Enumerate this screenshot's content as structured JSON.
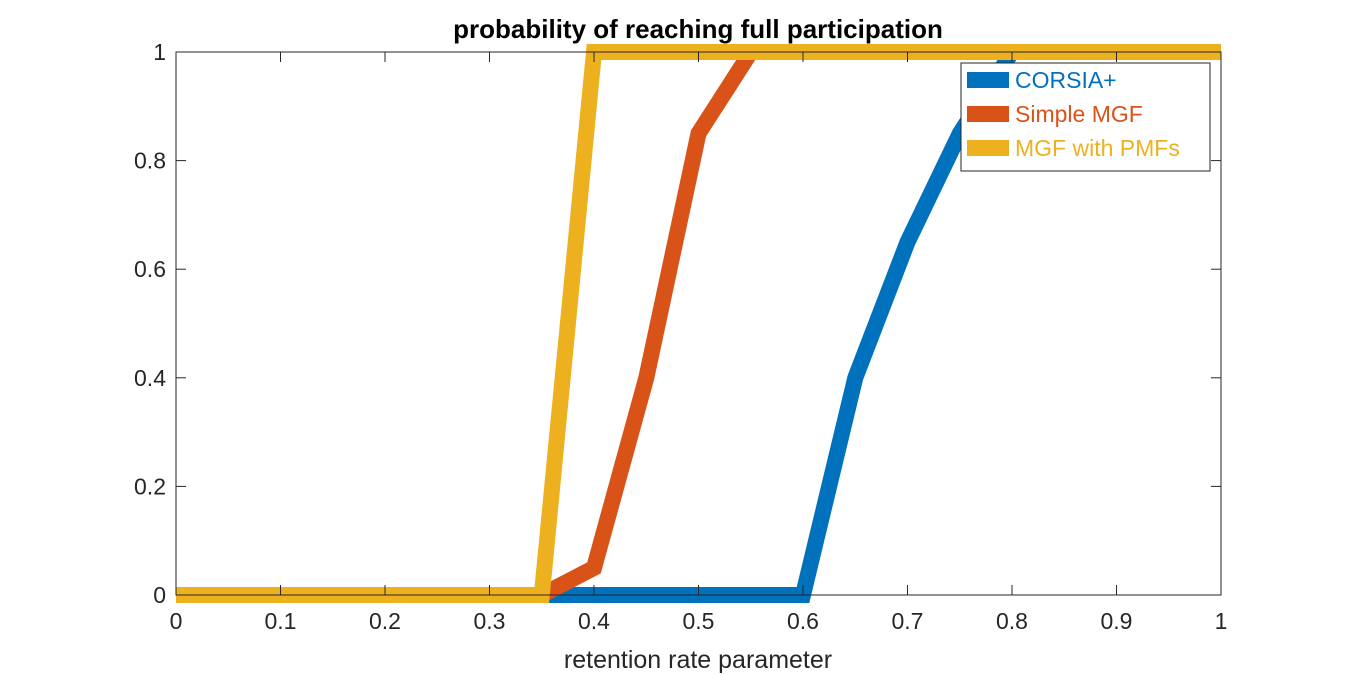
{
  "chart_data": {
    "type": "line",
    "title": "probability of reaching full participation",
    "xlabel": "retention rate parameter",
    "ylabel": "",
    "xlim": [
      0,
      1
    ],
    "ylim": [
      0,
      1
    ],
    "x_ticks": [
      "0",
      "0.1",
      "0.2",
      "0.3",
      "0.4",
      "0.5",
      "0.6",
      "0.7",
      "0.8",
      "0.9",
      "1"
    ],
    "y_ticks": [
      "0",
      "0.2",
      "0.4",
      "0.6",
      "0.8",
      "1"
    ],
    "grid": false,
    "legend_position": "top-right",
    "series": [
      {
        "name": "CORSIA+",
        "color": "#0072BD",
        "x": [
          0,
          0.05,
          0.1,
          0.15,
          0.2,
          0.25,
          0.3,
          0.35,
          0.4,
          0.45,
          0.5,
          0.55,
          0.6,
          0.65,
          0.7,
          0.75,
          0.8,
          0.85,
          0.9,
          0.95,
          1
        ],
        "y": [
          0,
          0,
          0,
          0,
          0,
          0,
          0,
          0,
          0,
          0,
          0,
          0,
          0,
          0.4,
          0.65,
          0.85,
          1,
          1,
          1,
          1,
          1
        ]
      },
      {
        "name": "Simple MGF",
        "color": "#D95319",
        "x": [
          0,
          0.05,
          0.1,
          0.15,
          0.2,
          0.25,
          0.3,
          0.35,
          0.4,
          0.45,
          0.5,
          0.55,
          0.6,
          0.65,
          0.7,
          0.75,
          0.8,
          0.85,
          0.9,
          0.95,
          1
        ],
        "y": [
          0,
          0,
          0,
          0,
          0,
          0,
          0,
          0,
          0.05,
          0.4,
          0.85,
          1,
          1,
          1,
          1,
          1,
          1,
          1,
          1,
          1,
          1
        ]
      },
      {
        "name": "MGF with PMFs",
        "color": "#EDB120",
        "x": [
          0,
          0.05,
          0.1,
          0.15,
          0.2,
          0.25,
          0.3,
          0.35,
          0.4,
          0.45,
          0.5,
          0.55,
          0.6,
          0.65,
          0.7,
          0.75,
          0.8,
          0.85,
          0.9,
          0.95,
          1
        ],
        "y": [
          0,
          0,
          0,
          0,
          0,
          0,
          0,
          0,
          1,
          1,
          1,
          1,
          1,
          1,
          1,
          1,
          1,
          1,
          1,
          1,
          1
        ]
      }
    ]
  }
}
